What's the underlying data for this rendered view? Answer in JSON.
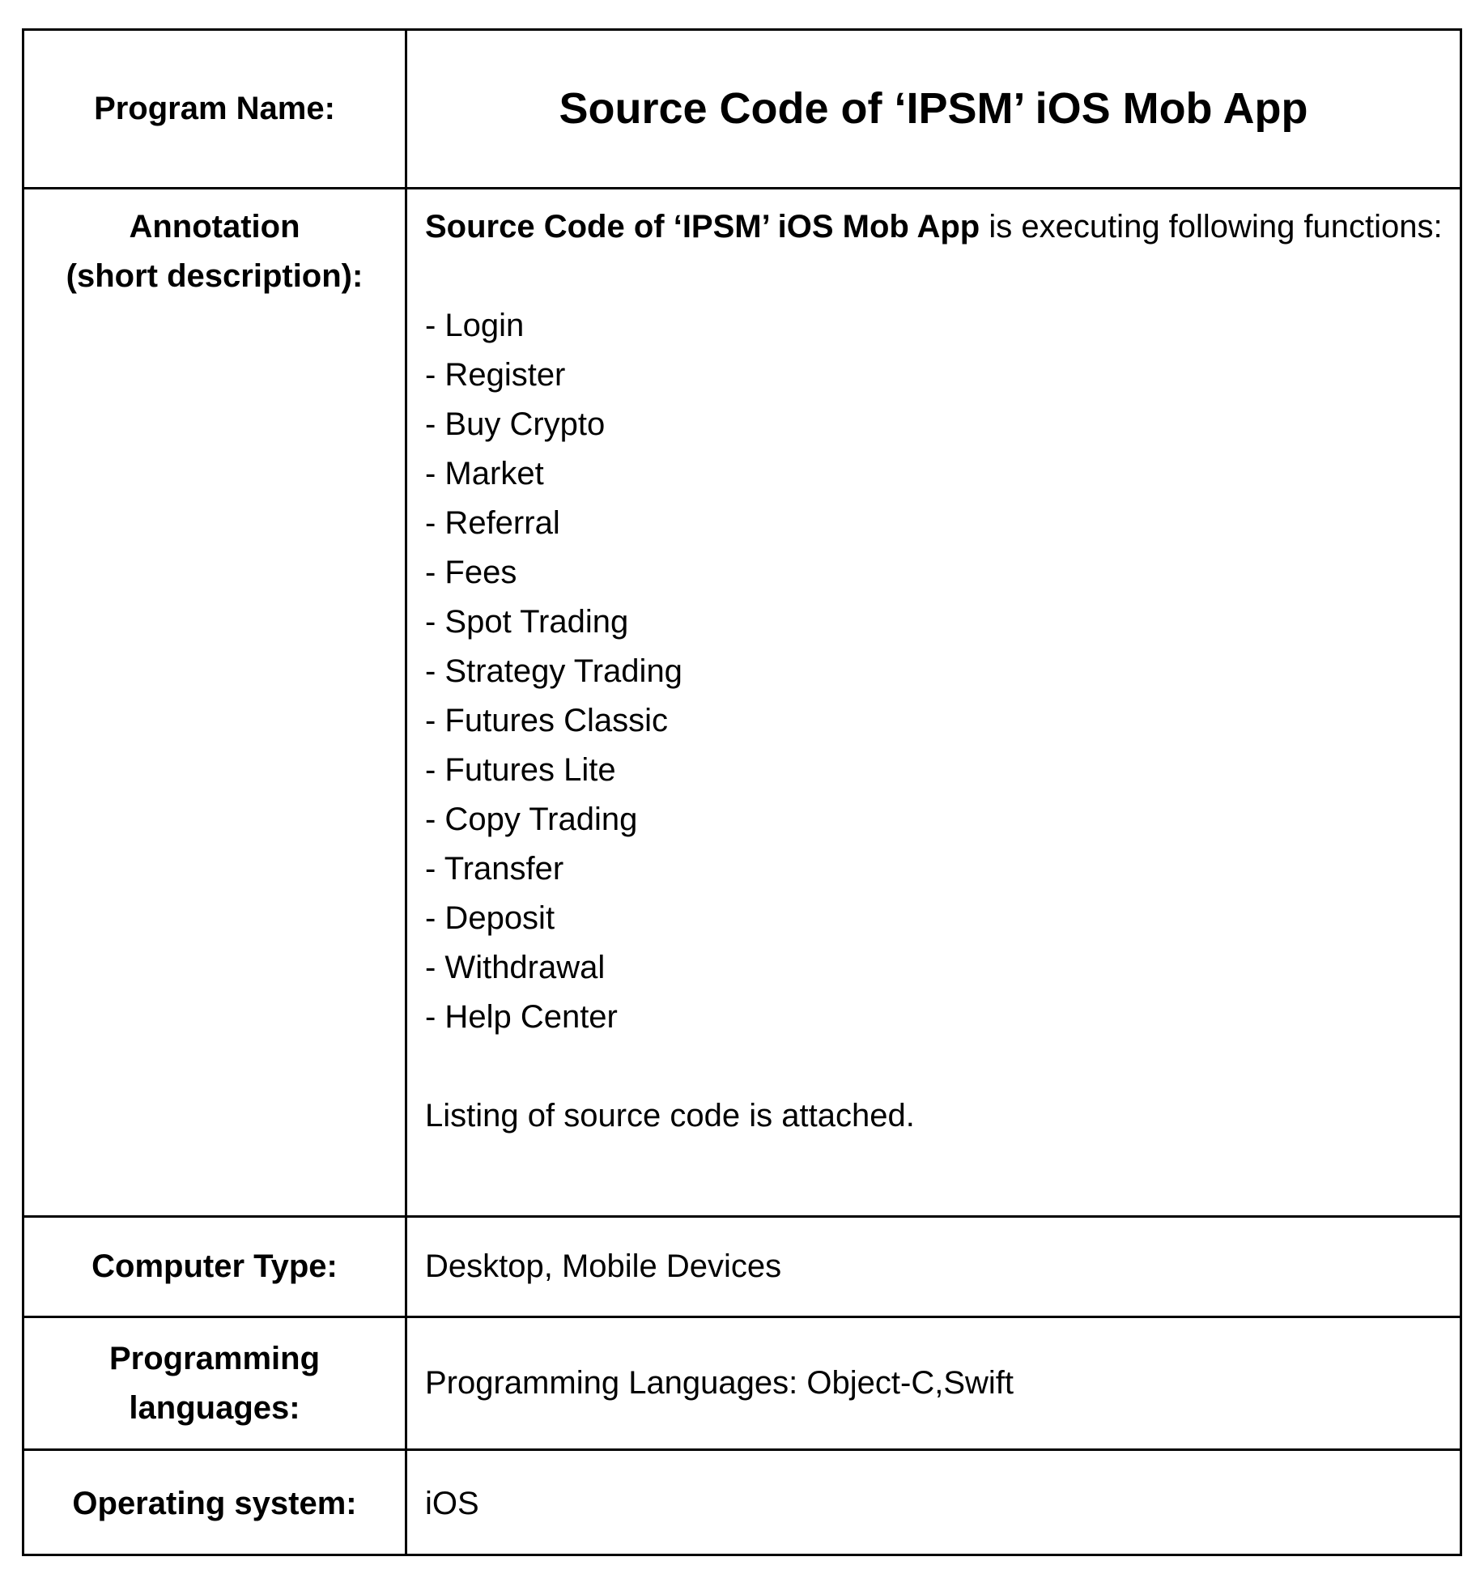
{
  "rows": {
    "program_name": {
      "label": "Program Name:",
      "value": "Source Code of ‘IPSM’ iOS Mob App"
    },
    "annotation": {
      "label_line1": "Annotation",
      "label_line2": "(short description):",
      "intro_bold": "Source Code of ‘IPSM’ iOS Mob App",
      "intro_rest": " is executing following functions:",
      "functions": [
        "- Login",
        "- Register",
        "- Buy Crypto",
        "- Market",
        "- Referral",
        "- Fees",
        "- Spot Trading",
        "- Strategy Trading",
        "- Futures Classic",
        "- Futures Lite",
        "- Copy Trading",
        "- Transfer",
        "- Deposit",
        "- Withdrawal",
        "- Help Center"
      ],
      "footer": "Listing of source code is attached."
    },
    "computer_type": {
      "label": "Computer Type:",
      "value": "Desktop, Mobile Devices"
    },
    "programming_languages": {
      "label_line1": "Programming",
      "label_line2": "languages:",
      "value": "Programming Languages: Object-C,Swift"
    },
    "operating_system": {
      "label": "Operating system:",
      "value": "iOS"
    }
  }
}
